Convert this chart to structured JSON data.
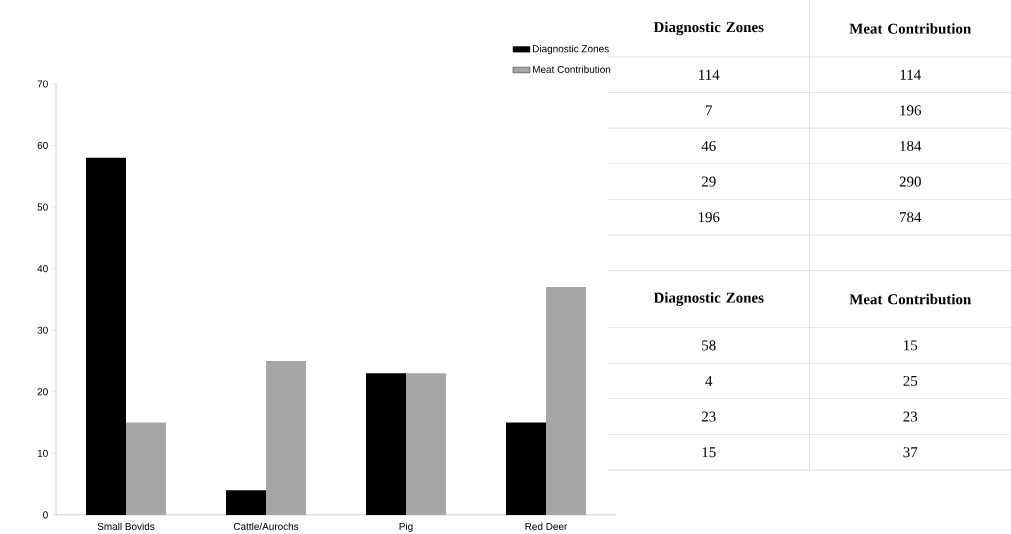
{
  "chart_data": [
    {
      "type": "bar",
      "categories": [
        "Small Bovids",
        "Cattle/Aurochs",
        "Pig",
        "Red Deer"
      ],
      "series": [
        {
          "name": "Diagnostic Zones",
          "color": "#000000",
          "values": [
            58,
            4,
            23,
            15
          ]
        },
        {
          "name": "Meat Contribution",
          "color": "#a6a6a6",
          "values": [
            15,
            25,
            23,
            37
          ]
        }
      ],
      "ylim": [
        0,
        70
      ],
      "yticks": [
        0,
        10,
        20,
        30,
        40,
        50,
        60,
        70
      ],
      "legend": "top right"
    },
    {
      "type": "other",
      "annotations": [
        "Diagnostic Zones",
        "Meat Contribution",
        "114",
        "114",
        "7",
        "196",
        "46",
        "184",
        "29",
        "290",
        "196",
        "784",
        "Diagnostic Zones",
        "Meat Contribution",
        "58",
        "15",
        "4",
        "25",
        "23",
        "23",
        "15",
        "37"
      ]
    }
  ]
}
